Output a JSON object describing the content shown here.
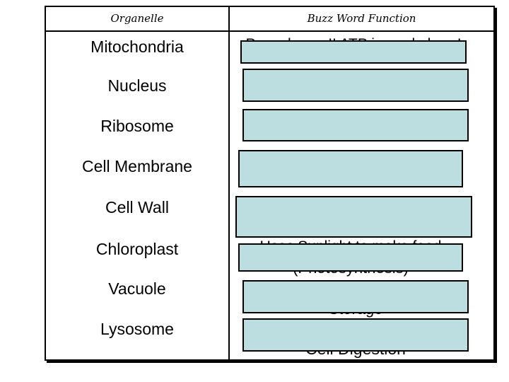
{
  "table": {
    "headers": {
      "organelle_col": "Organelle",
      "function_col": "Buzz Word Function"
    },
    "rows": [
      {
        "organelle": "Mitochondria",
        "answer_lines": [
          "Powerhouse!! ATP is made here!"
        ],
        "covered": true
      },
      {
        "organelle": "Nucleus",
        "answer_lines": [],
        "covered": true
      },
      {
        "organelle": "Ribosome",
        "answer_lines": [],
        "covered": true
      },
      {
        "organelle": "Cell Membrane",
        "answer_lines": [],
        "covered": true
      },
      {
        "organelle": "Cell Wall",
        "answer_lines": [],
        "covered": true
      },
      {
        "organelle": "Chloroplast",
        "answer_lines": [
          "Uses Sunlight to make food",
          "(Photosynthesis)"
        ],
        "covered": true
      },
      {
        "organelle": "Vacuole",
        "answer_lines": [
          "Storage"
        ],
        "covered": true
      },
      {
        "organelle": "Lysosome",
        "answer_lines": [
          "Cell Digestion"
        ],
        "covered": true
      }
    ],
    "colors": {
      "reveal_box_fill": "#bddee1",
      "reveal_box_border": "#000000",
      "table_border": "#000000",
      "text": "#000000",
      "background": "#ffffff"
    }
  }
}
